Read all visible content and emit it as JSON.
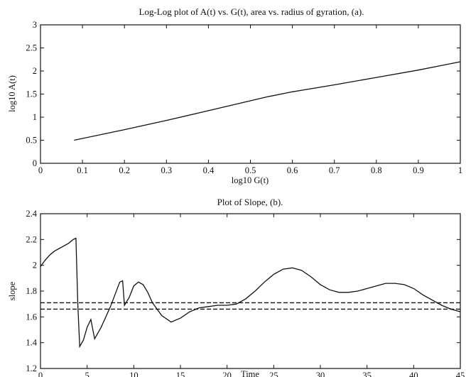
{
  "chart_data": [
    {
      "type": "line",
      "title": "Log-Log plot of A(t) vs. G(t), area vs. radius of gyration, (a).",
      "xlabel": "log10 G(t)",
      "ylabel": "log10 A(t)",
      "xlim": [
        0,
        1
      ],
      "ylim": [
        0,
        3
      ],
      "xticks": [
        0,
        0.1,
        0.2,
        0.3,
        0.4,
        0.5,
        0.6,
        0.7,
        0.8,
        0.9,
        1
      ],
      "xtick_labels": [
        "0",
        "0.1",
        "0.2",
        "0.3",
        "0.4",
        "0.5",
        "0.6",
        "0.7",
        "0.8",
        "0.9",
        "1"
      ],
      "yticks": [
        0,
        0.5,
        1,
        1.5,
        2,
        2.5,
        3
      ],
      "ytick_labels": [
        "0",
        "0.5",
        "1",
        "1.5",
        "2",
        "2.5",
        "3"
      ],
      "grid": false,
      "series": [
        {
          "x": [
            0.08,
            0.2,
            0.3,
            0.4,
            0.54,
            0.6,
            0.7,
            0.8,
            0.9,
            1.0
          ],
          "y": [
            0.5,
            0.73,
            0.93,
            1.14,
            1.44,
            1.55,
            1.7,
            1.86,
            2.02,
            2.2
          ]
        }
      ]
    },
    {
      "type": "line",
      "title": "Plot of Slope, (b).",
      "xlabel": "Time",
      "ylabel": "slope",
      "xlim": [
        0,
        45
      ],
      "ylim": [
        1.2,
        2.4
      ],
      "xticks": [
        0,
        5,
        10,
        15,
        20,
        25,
        30,
        35,
        40,
        45
      ],
      "xtick_labels": [
        "0",
        "5",
        "10",
        "15",
        "20",
        "25",
        "30",
        "35",
        "40",
        "45"
      ],
      "yticks": [
        1.2,
        1.4,
        1.6,
        1.8,
        2.0,
        2.2,
        2.4
      ],
      "ytick_labels": [
        "1.2",
        "1.4",
        "1.6",
        "1.8",
        "2",
        "2.2",
        "2.4"
      ],
      "grid": false,
      "series": [
        {
          "style": "solid",
          "x": [
            0,
            0.5,
            1,
            1.5,
            2,
            2.5,
            3,
            3.5,
            3.8,
            4.0,
            4.2,
            4.6,
            5.0,
            5.4,
            5.8,
            6.5,
            7.5,
            8.5,
            8.8,
            9.0,
            9.5,
            10,
            10.5,
            11,
            11.5,
            12,
            13,
            14,
            15,
            16,
            17,
            18,
            19,
            20,
            21,
            22,
            23,
            24,
            25,
            26,
            27,
            28,
            29,
            30,
            31,
            32,
            33,
            34,
            35,
            36,
            37,
            38,
            39,
            40,
            41,
            42,
            43,
            44,
            45
          ],
          "y": [
            1.99,
            2.04,
            2.08,
            2.11,
            2.13,
            2.15,
            2.17,
            2.2,
            2.21,
            1.7,
            1.37,
            1.42,
            1.52,
            1.58,
            1.43,
            1.52,
            1.68,
            1.87,
            1.88,
            1.69,
            1.75,
            1.84,
            1.87,
            1.85,
            1.79,
            1.71,
            1.61,
            1.56,
            1.59,
            1.64,
            1.67,
            1.68,
            1.69,
            1.69,
            1.7,
            1.74,
            1.8,
            1.87,
            1.93,
            1.97,
            1.98,
            1.96,
            1.91,
            1.85,
            1.81,
            1.79,
            1.79,
            1.8,
            1.82,
            1.84,
            1.86,
            1.86,
            1.85,
            1.82,
            1.77,
            1.73,
            1.69,
            1.66,
            1.64
          ]
        },
        {
          "style": "dashed",
          "x": [
            0,
            45
          ],
          "y": [
            1.71,
            1.71
          ]
        },
        {
          "style": "dashed",
          "x": [
            0,
            45
          ],
          "y": [
            1.66,
            1.66
          ]
        }
      ]
    }
  ]
}
